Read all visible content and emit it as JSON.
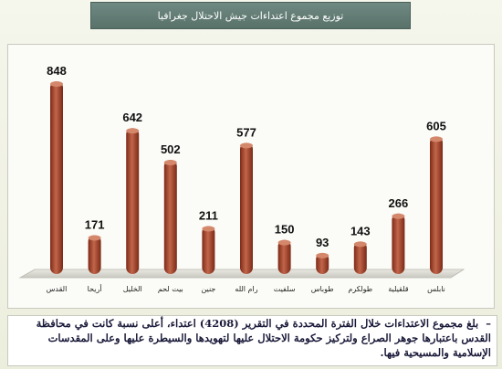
{
  "title": "توزيع مجموع اعتداءات جيش الاحتلال جغرافيا",
  "chart_data": {
    "type": "bar",
    "title": "توزيع مجموع اعتداءات جيش الاحتلال جغرافيا",
    "categories": [
      "القدس",
      "أريحا",
      "الخليل",
      "بيت لحم",
      "جنين",
      "رام الله",
      "سلفيت",
      "طوباس",
      "طولكرم",
      "قلقيلية",
      "نابلس"
    ],
    "values": [
      848,
      171,
      642,
      502,
      211,
      577,
      150,
      93,
      143,
      266,
      605
    ],
    "ylim": [
      0,
      900
    ],
    "grid": false,
    "legend": "none",
    "bar_color": "#a8452e"
  },
  "note": {
    "dash": "–",
    "text": "بلغ مجموع الاعتداءات خلال الفترة المحددة في التقرير (4208) اعتداء، أعلى نسبة كانت في محافظة القدس باعتبارها جوهر الصراع ولتركيز حكومة الاحتلال عليها لتهويدها والسيطرة عليها وعلى المقدسات الإسلامية والمسيحية فيها."
  }
}
